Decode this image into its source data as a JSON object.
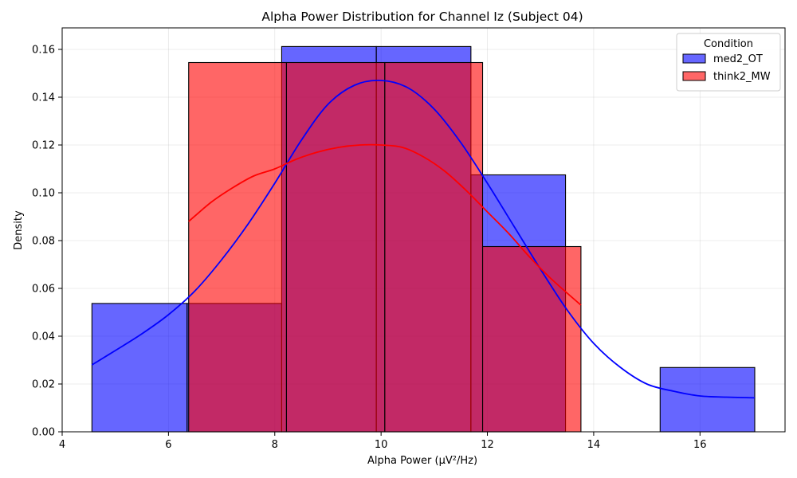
{
  "chart_data": {
    "type": "histogram",
    "title": "Alpha Power Distribution for Channel Iz (Subject 04)",
    "xlabel": "Alpha Power (µV²/Hz)",
    "ylabel": "Density",
    "xlim": [
      4,
      17.6
    ],
    "ylim": [
      0,
      0.169
    ],
    "xticks": [
      4,
      6,
      8,
      10,
      12,
      14,
      16
    ],
    "xtick_labels": [
      "4",
      "6",
      "8",
      "10",
      "12",
      "14",
      "16"
    ],
    "yticks": [
      0.0,
      0.02,
      0.04,
      0.06,
      0.08,
      0.1,
      0.12,
      0.14,
      0.16
    ],
    "ytick_labels": [
      "0.00",
      "0.02",
      "0.04",
      "0.06",
      "0.08",
      "0.10",
      "0.12",
      "0.14",
      "0.16"
    ],
    "grid": true,
    "legend": {
      "title": "Condition",
      "placement": "top-right"
    },
    "series": [
      {
        "name": "med2_OT",
        "color": "#0000ff",
        "bar_alpha": 0.6,
        "bins": [
          {
            "x0": 4.56,
            "x1": 6.35,
            "density": 0.0537
          },
          {
            "x0": 6.35,
            "x1": 8.13,
            "density": 0.0537
          },
          {
            "x0": 8.13,
            "x1": 9.91,
            "density": 0.1612
          },
          {
            "x0": 9.91,
            "x1": 11.69,
            "density": 0.1612
          },
          {
            "x0": 11.69,
            "x1": 13.47,
            "density": 0.1075
          },
          {
            "x0": 13.47,
            "x1": 15.25,
            "density": 0.0
          },
          {
            "x0": 15.25,
            "x1": 17.03,
            "density": 0.0269
          }
        ],
        "kde": {
          "x": [
            4.56,
            5.0,
            5.5,
            6.0,
            6.5,
            7.0,
            7.5,
            8.0,
            8.5,
            9.0,
            9.5,
            10.0,
            10.5,
            11.0,
            11.5,
            12.0,
            12.5,
            13.0,
            13.5,
            14.0,
            14.5,
            15.0,
            15.5,
            16.0,
            16.5,
            17.03
          ],
          "y": [
            0.028,
            0.034,
            0.041,
            0.049,
            0.059,
            0.072,
            0.087,
            0.104,
            0.122,
            0.137,
            0.145,
            0.147,
            0.144,
            0.135,
            0.121,
            0.104,
            0.086,
            0.068,
            0.051,
            0.037,
            0.027,
            0.02,
            0.017,
            0.015,
            0.0145,
            0.0142
          ]
        }
      },
      {
        "name": "think2_MW",
        "color": "#ff0000",
        "bar_alpha": 0.6,
        "bins": [
          {
            "x0": 6.38,
            "x1": 8.22,
            "density": 0.1545
          },
          {
            "x0": 8.22,
            "x1": 10.07,
            "density": 0.1545
          },
          {
            "x0": 10.07,
            "x1": 11.91,
            "density": 0.1545
          },
          {
            "x0": 11.91,
            "x1": 13.76,
            "density": 0.0775
          }
        ],
        "kde": {
          "x": [
            6.38,
            6.8,
            7.2,
            7.6,
            8.0,
            8.4,
            8.8,
            9.2,
            9.6,
            10.0,
            10.4,
            10.8,
            11.2,
            11.6,
            12.0,
            12.4,
            12.8,
            13.2,
            13.76
          ],
          "y": [
            0.088,
            0.096,
            0.102,
            0.107,
            0.11,
            0.114,
            0.117,
            0.119,
            0.12,
            0.12,
            0.119,
            0.115,
            0.109,
            0.101,
            0.092,
            0.083,
            0.073,
            0.064,
            0.053
          ]
        }
      }
    ]
  }
}
